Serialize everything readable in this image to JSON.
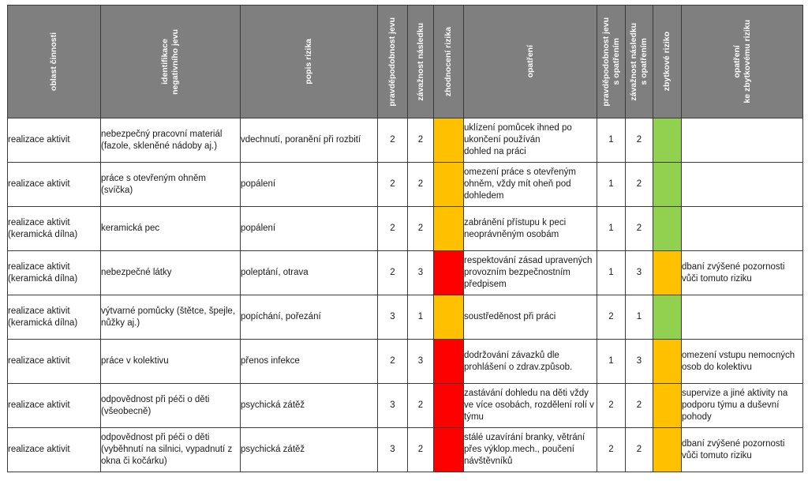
{
  "colors": {
    "header_bg": "#7f7f7f",
    "orange": "#ffc000",
    "red": "#ff0000",
    "green": "#92d050"
  },
  "headers": {
    "oblast": "oblast činnosti",
    "identifikace": "identifikace\nnegativního jevu",
    "popis": "popis rizika",
    "pravdepodobnost": "pravděpodobnost jevu",
    "zavaznost": "závažnost následku",
    "zhodnoceni": "zhodnocení rizika",
    "opatreni": "opatření",
    "pravdepodobnost_opatreni": "pravděpodobnost jevu\ns opatřením",
    "zavaznost_opatreni": "závažnost následku\ns opatřením",
    "zbytkove": "zbytkové riziko",
    "opatreni_zbytkove": "opatření\nke zbytkovému riziku"
  },
  "rows": [
    {
      "oblast": "realizace aktivit",
      "identifikace": "nebezpečný pracovní materiál (fazole, skleněné nádoby aj.)",
      "popis": "vdechnutí, poranění při rozbití",
      "p": "2",
      "z": "2",
      "risk": "orange",
      "opatreni": "uklízení pomůcek ihned po ukončení používán\ndohled na práci",
      "p2": "1",
      "z2": "2",
      "residual": "green",
      "opatreni_zbytkove": ""
    },
    {
      "oblast": "realizace aktivit",
      "identifikace": "práce s otevřeným ohněm (svíčka)",
      "popis": "popálení",
      "p": "2",
      "z": "2",
      "risk": "orange",
      "opatreni": "omezení práce s otevřeným ohněm, vždy mít oheň pod dohledem",
      "p2": "1",
      "z2": "2",
      "residual": "green",
      "opatreni_zbytkove": ""
    },
    {
      "oblast": "realizace aktivit (keramická dílna)",
      "identifikace": "keramická pec",
      "popis": "popálení",
      "p": "2",
      "z": "2",
      "risk": "orange",
      "opatreni": "zabránění přístupu k peci neoprávněným osobám",
      "p2": "1",
      "z2": "2",
      "residual": "green",
      "opatreni_zbytkove": ""
    },
    {
      "oblast": "realizace aktivit (keramická dílna)",
      "identifikace": "nebezpečné látky",
      "popis": "poleptání, otrava",
      "p": "2",
      "z": "3",
      "risk": "red",
      "opatreni": "respektování zásad upravených provozním bezpečnostním předpisem",
      "p2": "1",
      "z2": "3",
      "residual": "orange",
      "opatreni_zbytkove": "dbaní zvýšené pozornosti vůči tomuto riziku"
    },
    {
      "oblast": "realizace aktivit (keramická dílna)",
      "identifikace": "výtvarné pomůcky (štětce, špejle, nůžky aj.)",
      "popis": "popíchání, pořezání",
      "p": "3",
      "z": "1",
      "risk": "orange",
      "opatreni": "soustředěnost při práci",
      "p2": "2",
      "z2": "1",
      "residual": "green",
      "opatreni_zbytkove": ""
    },
    {
      "oblast": "realizace aktivit",
      "identifikace": "práce v kolektivu",
      "popis": "přenos infekce",
      "p": "2",
      "z": "3",
      "risk": "red",
      "opatreni": "dodržování závazků dle prohlášení o zdrav.způsob.",
      "p2": "1",
      "z2": "3",
      "residual": "orange",
      "opatreni_zbytkove": "omezení vstupu nemocných osob do kolektivu"
    },
    {
      "oblast": "realizace aktivit",
      "identifikace": "odpovědnost při péči o děti (všeobecně)",
      "popis": "psychická zátěž",
      "p": "3",
      "z": "2",
      "risk": "red",
      "opatreni": "zastávání dohledu na děti vždy ve více osobách, rozdělení rolí v týmu",
      "p2": "2",
      "z2": "2",
      "residual": "orange",
      "opatreni_zbytkove": "supervize a jiné aktivity na podporu týmu a duševní pohody"
    },
    {
      "oblast": "realizace aktivit",
      "identifikace": "odpovědnost při péči o děti (vyběhnutí na silnici, vypadnutí z okna či kočárku)",
      "popis": "psychická zátěž",
      "p": "3",
      "z": "2",
      "risk": "red",
      "opatreni": "stálé uzavírání branky, větrání přes výklop.mech., poučení návštěvníků",
      "p2": "2",
      "z2": "2",
      "residual": "orange",
      "opatreni_zbytkove": "dbaní zvýšené pozornosti vůči tomuto riziku"
    }
  ]
}
